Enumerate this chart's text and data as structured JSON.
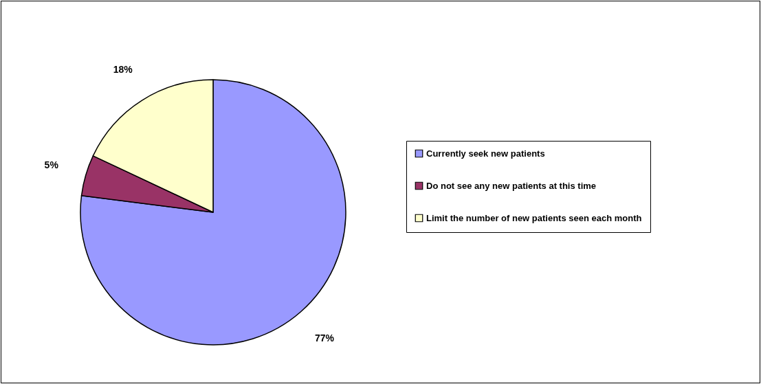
{
  "chart_data": {
    "type": "pie",
    "categories": [
      "Currently seek new patients",
      "Do not see any new patients at this time",
      "Limit the number of new patients seen each month"
    ],
    "values": [
      77,
      5,
      18
    ],
    "colors": [
      "#9999ff",
      "#993366",
      "#ffffcc"
    ],
    "value_labels": [
      "77%",
      "5%",
      "18%"
    ],
    "legend": "right"
  }
}
